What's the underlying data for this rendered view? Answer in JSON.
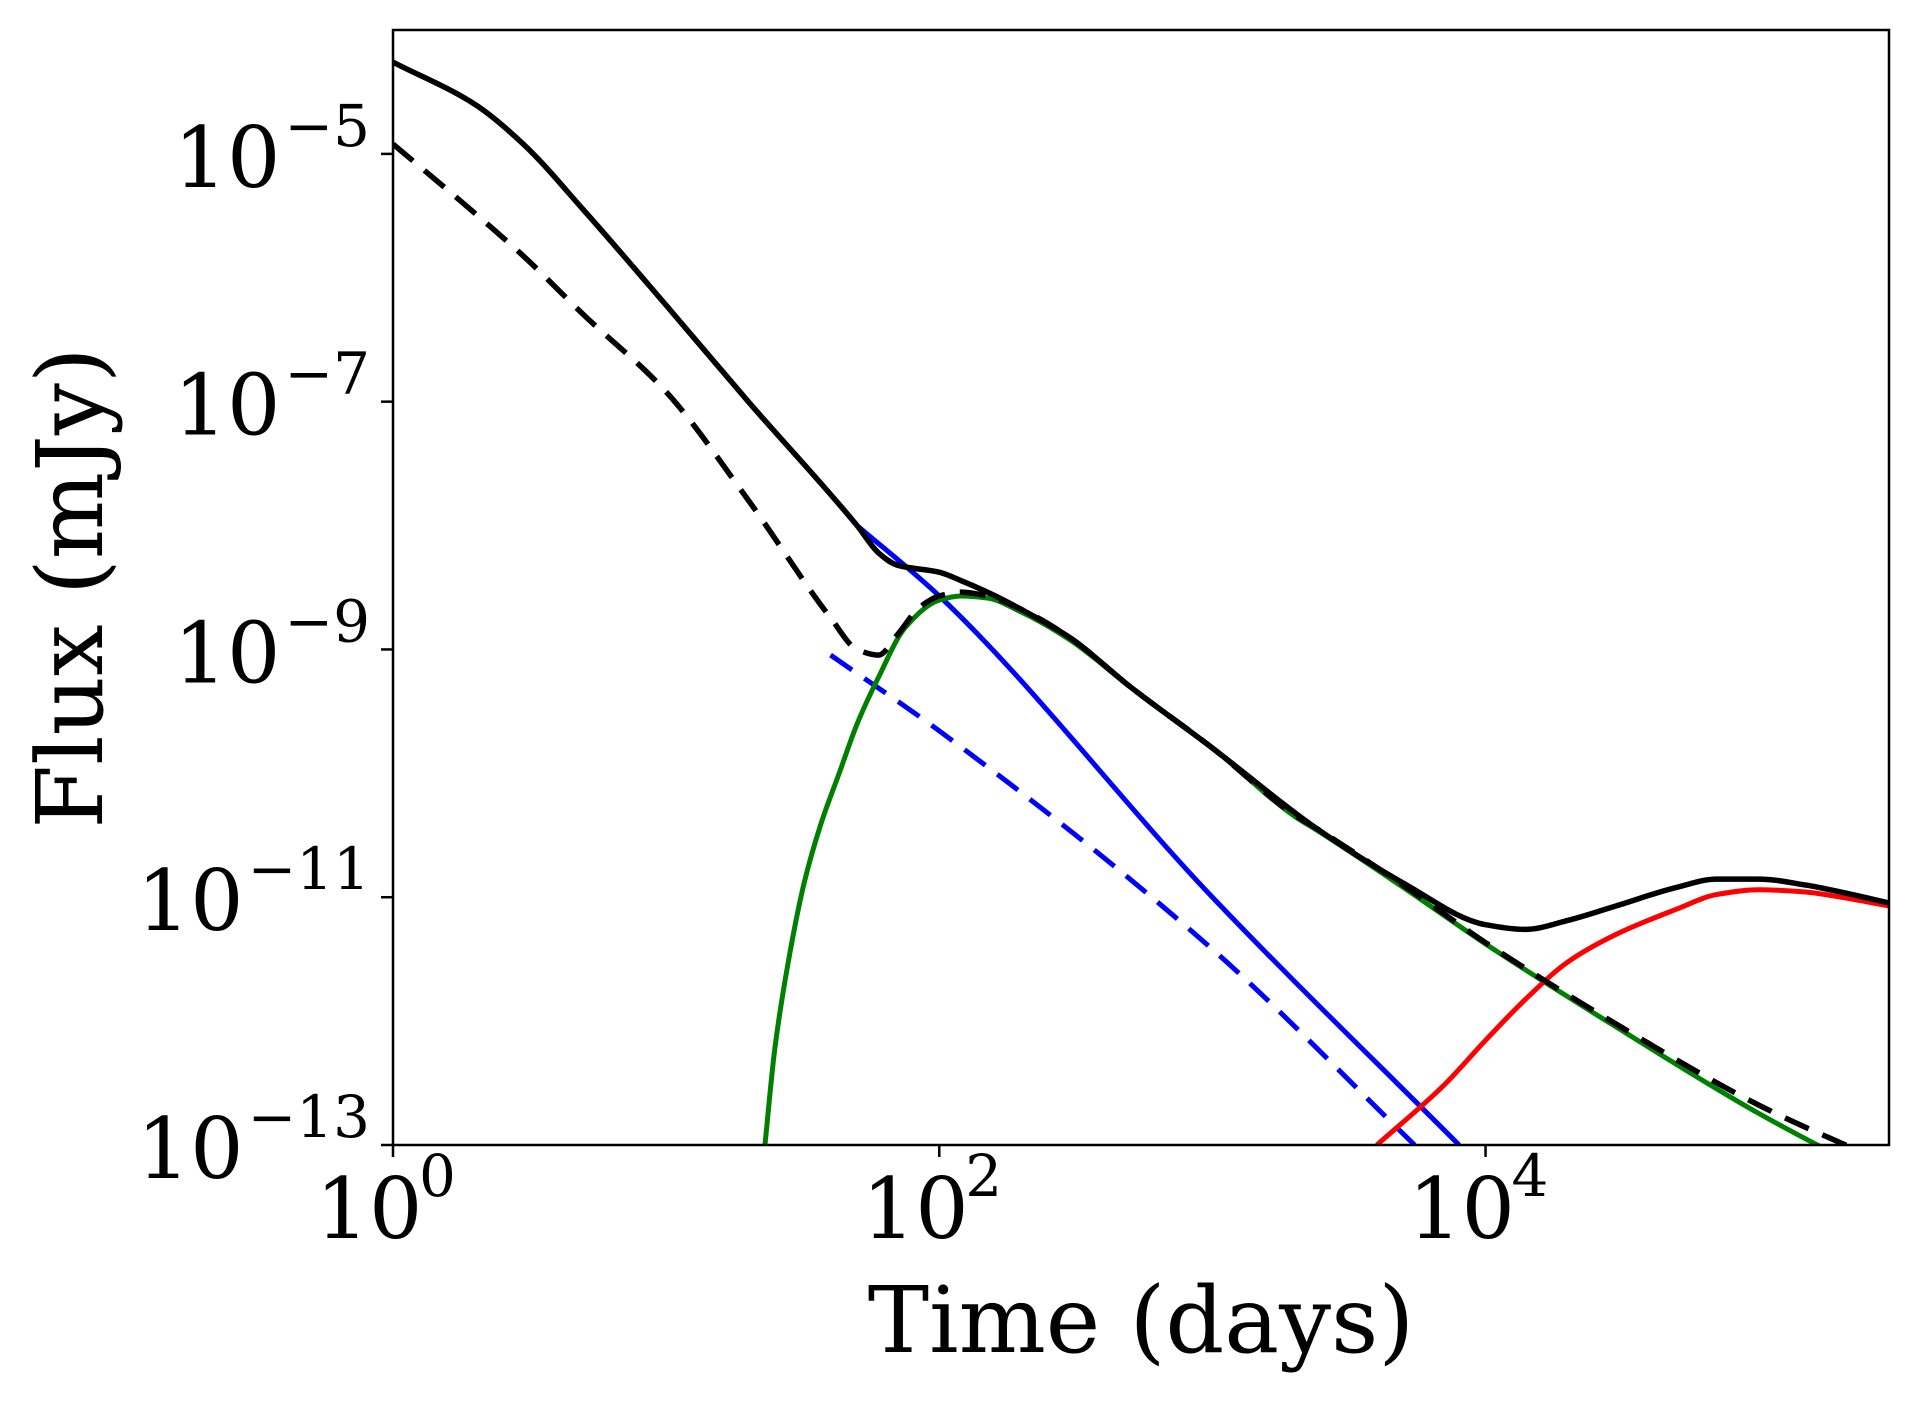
{
  "chart_data": {
    "type": "line",
    "title": "",
    "xlabel": "Time (days)",
    "ylabel": "Flux (mJy)",
    "xscale": "log",
    "yscale": "log",
    "xlim": [
      1,
      300000
    ],
    "ylim": [
      1e-13,
      0.0001
    ],
    "grid": false,
    "x_ticks": [
      {
        "value": 1,
        "base": "10",
        "exp": "0"
      },
      {
        "value": 100,
        "base": "10",
        "exp": "2"
      },
      {
        "value": 10000,
        "base": "10",
        "exp": "4"
      }
    ],
    "y_ticks": [
      {
        "value": 1e-05,
        "base": "10",
        "exp": "−5"
      },
      {
        "value": 1e-07,
        "base": "10",
        "exp": "−7"
      },
      {
        "value": 1e-09,
        "base": "10",
        "exp": "−9"
      },
      {
        "value": 1e-11,
        "base": "10",
        "exp": "−11"
      },
      {
        "value": 1e-13,
        "base": "10",
        "exp": "−13"
      }
    ],
    "series": [
      {
        "name": "blue-solid",
        "color": "#0000ff",
        "style": "solid",
        "x": [
          50,
          100,
          1000,
          8000
        ],
        "y": [
          1e-08,
          2.7e-09,
          1e-11,
          1e-13
        ]
      },
      {
        "name": "blue-dashed",
        "color": "#0000ff",
        "style": "dashed",
        "x": [
          40,
          100,
          1000,
          5500
        ],
        "y": [
          9e-10,
          2.2e-10,
          3.8e-12,
          1e-13
        ]
      },
      {
        "name": "green-solid",
        "color": "#008000",
        "style": "solid",
        "x": [
          23,
          25,
          28,
          32,
          37,
          43,
          50,
          60,
          75,
          100,
          120,
          150,
          200,
          300,
          500,
          1000,
          2000,
          2400,
          5000,
          10000,
          30000,
          100000,
          300000
        ],
        "y": [
          1e-13,
          6e-13,
          3e-12,
          1.3e-11,
          4e-11,
          1e-10,
          2.5e-10,
          6e-10,
          1.5e-09,
          2.5e-09,
          2.7e-09,
          2.6e-09,
          2e-09,
          1.2e-09,
          5e-10,
          1.6e-10,
          4.5e-11,
          3.5e-11,
          1.2e-11,
          4.2e-12,
          9e-13,
          1.8e-13,
          5e-14
        ]
      },
      {
        "name": "red-solid",
        "color": "#ff0000",
        "style": "solid",
        "x": [
          4000,
          7000,
          10000,
          14000,
          20000,
          30000,
          50000,
          70000,
          100000,
          150000,
          200000,
          300000
        ],
        "y": [
          1e-13,
          3e-13,
          7e-13,
          1.5e-12,
          3e-12,
          5e-12,
          8e-12,
          1.05e-11,
          1.15e-11,
          1.1e-11,
          1e-11,
          8.5e-12
        ]
      },
      {
        "name": "black-solid-total",
        "color": "#000000",
        "style": "solid",
        "x": [
          1,
          2,
          3,
          5,
          10,
          20,
          50,
          60,
          70,
          100,
          120,
          150,
          200,
          300,
          500,
          1000,
          2400,
          5000,
          10000,
          14000,
          20000,
          30000,
          50000,
          70000,
          100000,
          150000,
          200000,
          300000
        ],
        "y": [
          5.5e-05,
          2.5e-05,
          1.2e-05,
          3.5e-06,
          6e-07,
          1e-07,
          1e-08,
          6e-09,
          4.8e-09,
          4.2e-09,
          3.6e-09,
          2.9e-09,
          2.1e-09,
          1.25e-09,
          5e-10,
          1.6e-10,
          3.6e-11,
          1.3e-11,
          6e-12,
          5.5e-12,
          6.5e-12,
          8.5e-12,
          1.2e-11,
          1.4e-11,
          1.4e-11,
          1.25e-11,
          1.1e-11,
          9e-12
        ]
      },
      {
        "name": "black-dashed",
        "color": "#000000",
        "style": "dashed",
        "x": [
          1,
          2,
          3,
          5,
          10,
          20,
          40,
          50,
          60,
          70,
          85,
          100,
          120,
          150,
          200,
          300,
          500,
          1000,
          2000,
          2400,
          5000,
          10000,
          30000,
          100000,
          300000
        ],
        "y": [
          1.2e-05,
          3.3e-06,
          1.5e-06,
          5e-07,
          1.2e-07,
          1.6e-08,
          1.8e-09,
          1e-09,
          9e-10,
          1.3e-09,
          2.2e-09,
          2.7e-09,
          2.9e-09,
          2.7e-09,
          2.1e-09,
          1.25e-09,
          5e-10,
          1.6e-10,
          4.6e-11,
          3.6e-11,
          1.25e-11,
          4.3e-12,
          9.5e-13,
          2.1e-13,
          7e-14
        ]
      }
    ]
  }
}
